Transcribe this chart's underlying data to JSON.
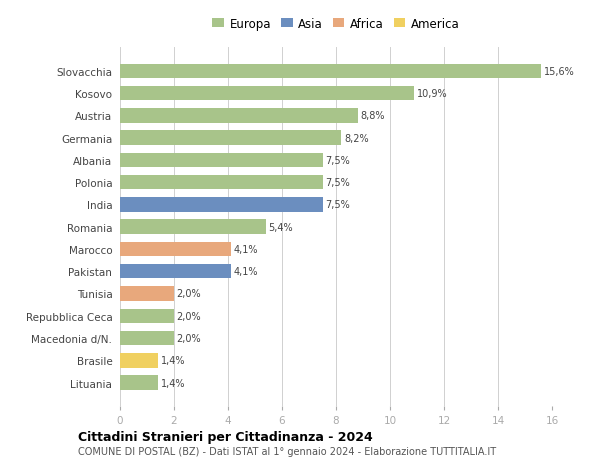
{
  "countries": [
    "Slovacchia",
    "Kosovo",
    "Austria",
    "Germania",
    "Albania",
    "Polonia",
    "India",
    "Romania",
    "Marocco",
    "Pakistan",
    "Tunisia",
    "Repubblica Ceca",
    "Macedonia d/N.",
    "Brasile",
    "Lituania"
  ],
  "values": [
    15.6,
    10.9,
    8.8,
    8.2,
    7.5,
    7.5,
    7.5,
    5.4,
    4.1,
    4.1,
    2.0,
    2.0,
    2.0,
    1.4,
    1.4
  ],
  "labels": [
    "15,6%",
    "10,9%",
    "8,8%",
    "8,2%",
    "7,5%",
    "7,5%",
    "7,5%",
    "5,4%",
    "4,1%",
    "4,1%",
    "2,0%",
    "2,0%",
    "2,0%",
    "1,4%",
    "1,4%"
  ],
  "continents": [
    "Europa",
    "Europa",
    "Europa",
    "Europa",
    "Europa",
    "Europa",
    "Asia",
    "Europa",
    "Africa",
    "Asia",
    "Africa",
    "Europa",
    "Europa",
    "America",
    "Europa"
  ],
  "colors": {
    "Europa": "#a8c48a",
    "Asia": "#6b8ebf",
    "Africa": "#e8a87c",
    "America": "#f0d060"
  },
  "legend_order": [
    "Europa",
    "Asia",
    "Africa",
    "America"
  ],
  "title": "Cittadini Stranieri per Cittadinanza - 2024",
  "subtitle": "COMUNE DI POSTAL (BZ) - Dati ISTAT al 1° gennaio 2024 - Elaborazione TUTTITALIA.IT",
  "xlim": [
    0,
    16
  ],
  "xticks": [
    0,
    2,
    4,
    6,
    8,
    10,
    12,
    14,
    16
  ],
  "background_color": "#ffffff",
  "grid_color": "#d0d0d0",
  "bar_height": 0.65
}
